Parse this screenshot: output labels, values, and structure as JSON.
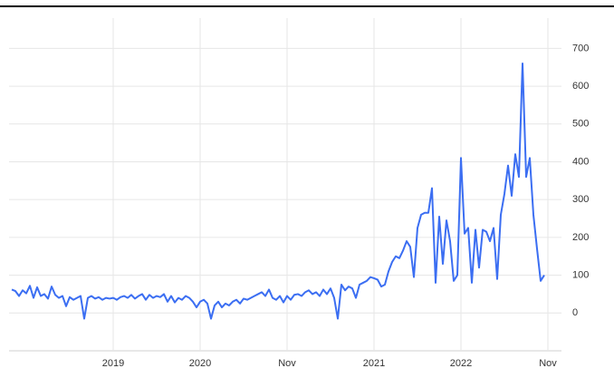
{
  "chart_data": {
    "type": "line",
    "categories": [
      null,
      null,
      null,
      null,
      null,
      null,
      null,
      null,
      null,
      null,
      null,
      null,
      null,
      null,
      null,
      null,
      null,
      null,
      null,
      null,
      null,
      null,
      null,
      null,
      null,
      null,
      null,
      null,
      "2019",
      null,
      null,
      null,
      null,
      null,
      null,
      null,
      null,
      null,
      null,
      null,
      null,
      null,
      null,
      null,
      null,
      null,
      null,
      null,
      null,
      null,
      null,
      null,
      "2020",
      null,
      null,
      null,
      null,
      null,
      null,
      null,
      null,
      null,
      null,
      null,
      null,
      null,
      null,
      null,
      null,
      null,
      null,
      null,
      null,
      null,
      null,
      null,
      "Nov",
      null,
      null,
      null,
      null,
      null,
      null,
      null,
      null,
      null,
      null,
      null,
      null,
      null,
      null,
      null,
      null,
      null,
      null,
      null,
      null,
      null,
      null,
      null,
      "2021",
      null,
      null,
      null,
      null,
      null,
      null,
      null,
      null,
      null,
      null,
      null,
      null,
      null,
      null,
      null,
      null,
      null,
      null,
      null,
      null,
      null,
      null,
      null,
      "2022",
      null,
      null,
      null,
      null,
      null,
      null,
      null,
      null,
      null,
      null,
      null,
      null,
      null,
      null,
      null,
      null,
      null,
      null,
      null,
      null,
      null,
      null,
      null,
      "Nov"
    ],
    "values": [
      62,
      58,
      45,
      60,
      52,
      72,
      40,
      68,
      45,
      50,
      38,
      70,
      48,
      40,
      45,
      18,
      42,
      35,
      40,
      45,
      -15,
      40,
      45,
      38,
      42,
      35,
      40,
      38,
      40,
      35,
      42,
      45,
      40,
      48,
      38,
      45,
      50,
      35,
      48,
      40,
      45,
      42,
      50,
      30,
      45,
      28,
      40,
      35,
      45,
      40,
      30,
      15,
      30,
      35,
      25,
      -15,
      20,
      30,
      15,
      25,
      20,
      30,
      35,
      25,
      38,
      35,
      40,
      45,
      50,
      55,
      45,
      62,
      40,
      35,
      45,
      28,
      45,
      35,
      48,
      50,
      45,
      55,
      60,
      50,
      55,
      45,
      62,
      50,
      65,
      40,
      -15,
      75,
      60,
      70,
      65,
      40,
      75,
      80,
      85,
      95,
      92,
      88,
      70,
      75,
      110,
      135,
      150,
      145,
      165,
      190,
      175,
      95,
      225,
      260,
      265,
      265,
      330,
      80,
      255,
      130,
      245,
      190,
      85,
      100,
      410,
      210,
      225,
      80,
      220,
      120,
      220,
      215,
      190,
      225,
      90,
      260,
      315,
      390,
      310,
      420,
      360,
      660,
      360,
      410,
      260,
      170,
      85,
      100,
      null
    ],
    "color": "#3b6ef2",
    "ylim": [
      -100,
      780
    ],
    "yticks": [
      0,
      100,
      200,
      300,
      400,
      500,
      600,
      700
    ],
    "grid": true
  }
}
